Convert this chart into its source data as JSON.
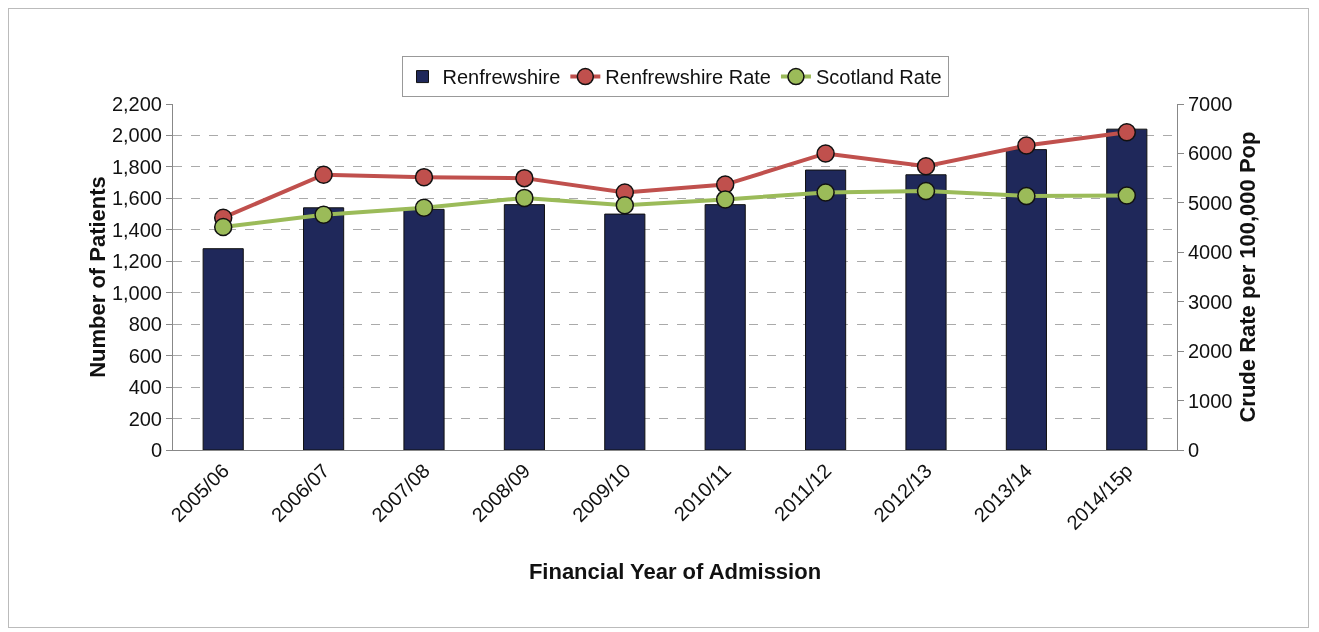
{
  "chart_data": {
    "type": "bar",
    "xlabel": "Financial Year of Admission",
    "ylabel": "Number of Patients",
    "y2label": "Crude Rate per 100,000 Pop",
    "categories": [
      "2005/06",
      "2006/07",
      "2007/08",
      "2008/09",
      "2009/10",
      "2010/11",
      "2011/12",
      "2012/13",
      "2013/14",
      "2014/15p"
    ],
    "series": [
      {
        "name": "Renfrewshire",
        "color": "#1f285a",
        "values": [
          1280,
          1540,
          1530,
          1560,
          1500,
          1560,
          1780,
          1750,
          1910,
          2040
        ]
      },
      {
        "name": "Renfrewshire Rate",
        "type": "line",
        "axis": "y2",
        "color": "#c0504d",
        "values": [
          4700,
          5570,
          5520,
          5500,
          5210,
          5370,
          6000,
          5740,
          6160,
          6430
        ]
      },
      {
        "name": "Scotland Rate",
        "type": "line",
        "axis": "y2",
        "color": "#9bbb59",
        "values": [
          4510,
          4760,
          4900,
          5100,
          4950,
          5070,
          5210,
          5240,
          5140,
          5150
        ]
      }
    ],
    "ylim": [
      0,
      2200
    ],
    "yticks": [
      0,
      {
        "value": 200,
        "label": "200"
      },
      {
        "value": 400,
        "label": "400"
      },
      {
        "value": 600,
        "label": "600"
      },
      {
        "value": 800,
        "label": "800"
      },
      {
        "value": 1000,
        "label": "1,000"
      },
      {
        "value": 1200,
        "label": "1,200"
      },
      {
        "value": 1400,
        "label": "1,400"
      },
      {
        "value": 1600,
        "label": "1,600"
      },
      {
        "value": 1800,
        "label": "1,800"
      },
      {
        "value": 2000,
        "label": "2,000"
      },
      {
        "value": 2200,
        "label": "2,200"
      }
    ],
    "y2lim": [
      0,
      7000
    ],
    "y2ticks": [
      0,
      1000,
      2000,
      3000,
      4000,
      5000,
      6000,
      7000
    ],
    "grid": "y",
    "legend": "top",
    "marker": "circle",
    "line_style": "solid"
  }
}
